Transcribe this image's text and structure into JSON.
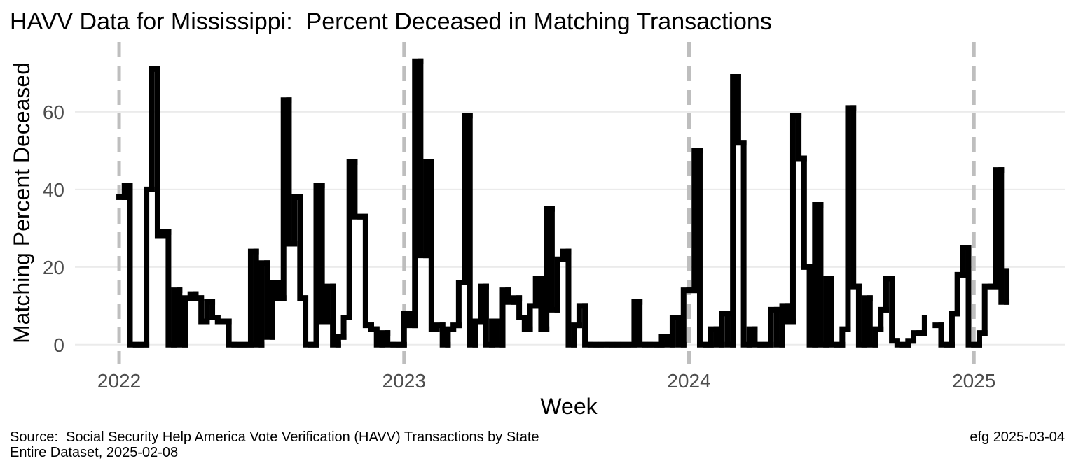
{
  "chart_data": {
    "type": "step",
    "title": "HAVV Data for Mississippi:  Percent Deceased in Matching Transactions",
    "x_label": "Week",
    "y_label": "Matching Percent Deceased",
    "caption_left": [
      "Source:  Social Security Help America Vote Verification (HAVV) Transactions by State",
      "Entire Dataset, 2025-02-08"
    ],
    "caption_right": "efg 2025-03-04",
    "color": "#000000",
    "grid": true,
    "xlim": [
      2021.845,
      2025.319
    ],
    "ylim": [
      -4.9,
      78
    ],
    "xticks": [
      2022,
      2023,
      2024,
      2025
    ],
    "yticks": [
      0,
      20,
      40,
      60
    ],
    "x": [
      2022.0,
      2022.019,
      2022.038,
      2022.058,
      2022.077,
      2022.096,
      2022.115,
      2022.135,
      2022.154,
      2022.173,
      2022.192,
      2022.212,
      2022.231,
      2022.25,
      2022.269,
      2022.288,
      2022.308,
      2022.327,
      2022.346,
      2022.365,
      2022.385,
      2022.404,
      2022.423,
      2022.442,
      2022.462,
      2022.481,
      2022.5,
      2022.519,
      2022.538,
      2022.558,
      2022.577,
      2022.596,
      2022.615,
      2022.635,
      2022.654,
      2022.673,
      2022.692,
      2022.712,
      2022.731,
      2022.75,
      2022.769,
      2022.788,
      2022.808,
      2022.827,
      2022.846,
      2022.865,
      2022.885,
      2022.904,
      2022.923,
      2022.942,
      2022.962,
      2022.981,
      2023.0,
      2023.019,
      2023.038,
      2023.058,
      2023.077,
      2023.096,
      2023.115,
      2023.135,
      2023.154,
      2023.173,
      2023.192,
      2023.212,
      2023.231,
      2023.25,
      2023.269,
      2023.288,
      2023.308,
      2023.327,
      2023.346,
      2023.365,
      2023.385,
      2023.404,
      2023.423,
      2023.442,
      2023.462,
      2023.481,
      2023.5,
      2023.519,
      2023.538,
      2023.558,
      2023.577,
      2023.596,
      2023.615,
      2023.635,
      2023.654,
      2023.673,
      2023.692,
      2023.712,
      2023.731,
      2023.75,
      2023.769,
      2023.788,
      2023.808,
      2023.827,
      2023.846,
      2023.865,
      2023.885,
      2023.904,
      2023.923,
      2023.942,
      2023.962,
      2023.981,
      2024.0,
      2024.019,
      2024.038,
      2024.058,
      2024.077,
      2024.096,
      2024.115,
      2024.135,
      2024.154,
      2024.173,
      2024.192,
      2024.212,
      2024.231,
      2024.25,
      2024.269,
      2024.288,
      2024.308,
      2024.327,
      2024.346,
      2024.365,
      2024.385,
      2024.404,
      2024.423,
      2024.442,
      2024.462,
      2024.481,
      2024.5,
      2024.519,
      2024.538,
      2024.558,
      2024.577,
      2024.596,
      2024.615,
      2024.635,
      2024.654,
      2024.673,
      2024.692,
      2024.712,
      2024.731,
      2024.75,
      2024.769,
      2024.788,
      2024.808,
      2024.827,
      2024.846,
      2024.865,
      2024.885,
      2024.904,
      2024.923,
      2024.942,
      2024.962,
      2024.981,
      2025.0,
      2025.019,
      2025.038,
      2025.058,
      2025.077,
      2025.096,
      2025.115
    ],
    "values": [
      38,
      41,
      0,
      0,
      0,
      40,
      71,
      28,
      29,
      0,
      14,
      0,
      12,
      13,
      12,
      6,
      11,
      7,
      6,
      6,
      0,
      0,
      0,
      0,
      24,
      0,
      21,
      2,
      16,
      12,
      63,
      26,
      38,
      12,
      0,
      0,
      41,
      6,
      15,
      0,
      2,
      7,
      47,
      33,
      33,
      5,
      4,
      0,
      3,
      0,
      0,
      0,
      8,
      5,
      73,
      23,
      47,
      4,
      5,
      0,
      4,
      5,
      16,
      59,
      0,
      6,
      15,
      0,
      6,
      0,
      14,
      11,
      12,
      7,
      4,
      10,
      17,
      4,
      35,
      9,
      22,
      24,
      0,
      5,
      10,
      0,
      0,
      0,
      0,
      0,
      0,
      0,
      0,
      0,
      11,
      0,
      0,
      0,
      0,
      2,
      0,
      7,
      0,
      14,
      14,
      50,
      0,
      0,
      4,
      0,
      8,
      0,
      69,
      52,
      0,
      4,
      0,
      0,
      0,
      9,
      0,
      10,
      6,
      59,
      48,
      20,
      0,
      36,
      0,
      17,
      0,
      0,
      4,
      61,
      15,
      0,
      12,
      0,
      4,
      9,
      17,
      1,
      0,
      0,
      1,
      3,
      3,
      7,
      null,
      5,
      0,
      0,
      8,
      18,
      25,
      0,
      0,
      3,
      15,
      15,
      45,
      11,
      19
    ]
  }
}
